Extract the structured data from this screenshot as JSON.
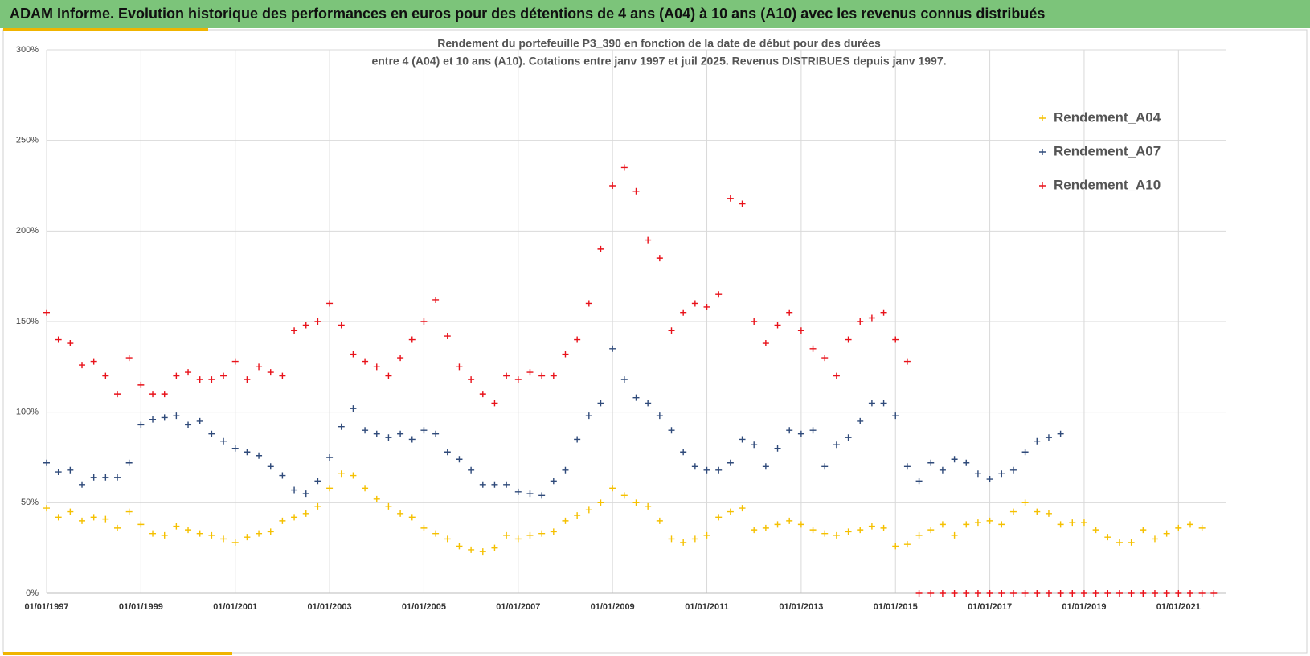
{
  "header": {
    "title": "ADAM Informe. Evolution historique des performances en euros pour des détentions de 4 ans (A04) à 10 ans (A10) avec les revenus connus distribués"
  },
  "chart_data": {
    "type": "scatter",
    "title": "Rendement du portefeuille P3_390 en fonction de la date de début pour des durées",
    "subtitle": "entre 4 (A04) et 10 ans (A10). Cotations entre janv 1997 et juil 2025. Revenus DISTRIBUES depuis janv 1997.",
    "xlim": [
      1997,
      2022
    ],
    "xticks": [
      {
        "value": 1997,
        "label": "01/01/1997"
      },
      {
        "value": 1999,
        "label": "01/01/1999"
      },
      {
        "value": 2001,
        "label": "01/01/2001"
      },
      {
        "value": 2003,
        "label": "01/01/2003"
      },
      {
        "value": 2005,
        "label": "01/01/2005"
      },
      {
        "value": 2007,
        "label": "01/01/2007"
      },
      {
        "value": 2009,
        "label": "01/01/2009"
      },
      {
        "value": 2011,
        "label": "01/01/2011"
      },
      {
        "value": 2013,
        "label": "01/01/2013"
      },
      {
        "value": 2015,
        "label": "01/01/2015"
      },
      {
        "value": 2017,
        "label": "01/01/2017"
      },
      {
        "value": 2019,
        "label": "01/01/2019"
      },
      {
        "value": 2021,
        "label": "01/01/2021"
      }
    ],
    "ylim": [
      0,
      300
    ],
    "yticks": [
      {
        "value": 0,
        "label": "0%"
      },
      {
        "value": 50,
        "label": "50%"
      },
      {
        "value": 100,
        "label": "100%"
      },
      {
        "value": 150,
        "label": "150%"
      },
      {
        "value": 200,
        "label": "200%"
      },
      {
        "value": 250,
        "label": "250%"
      },
      {
        "value": 300,
        "label": "300%"
      }
    ],
    "grid": true,
    "legend": "right",
    "x": [
      1997,
      1997.25,
      1997.5,
      1997.75,
      1998,
      1998.25,
      1998.5,
      1998.75,
      1999,
      1999.25,
      1999.5,
      1999.75,
      2000,
      2000.25,
      2000.5,
      2000.75,
      2001,
      2001.25,
      2001.5,
      2001.75,
      2002,
      2002.25,
      2002.5,
      2002.75,
      2003,
      2003.25,
      2003.5,
      2003.75,
      2004,
      2004.25,
      2004.5,
      2004.75,
      2005,
      2005.25,
      2005.5,
      2005.75,
      2006,
      2006.25,
      2006.5,
      2006.75,
      2007,
      2007.25,
      2007.5,
      2007.75,
      2008,
      2008.25,
      2008.5,
      2008.75,
      2009,
      2009.25,
      2009.5,
      2009.75,
      2010,
      2010.25,
      2010.5,
      2010.75,
      2011,
      2011.25,
      2011.5,
      2011.75,
      2012,
      2012.25,
      2012.5,
      2012.75,
      2013,
      2013.25,
      2013.5,
      2013.75,
      2014,
      2014.25,
      2014.5,
      2014.75,
      2015,
      2015.25,
      2015.5,
      2015.75,
      2016,
      2016.25,
      2016.5,
      2016.75,
      2017,
      2017.25,
      2017.5,
      2017.75,
      2018,
      2018.25,
      2018.5,
      2018.75,
      2019,
      2019.25,
      2019.5,
      2019.75,
      2020,
      2020.25,
      2020.5,
      2020.75,
      2021,
      2021.25,
      2021.5,
      2021.75
    ],
    "series": [
      {
        "name": "Rendement_A04",
        "color": "#f5c000",
        "values": [
          47,
          42,
          45,
          40,
          42,
          41,
          36,
          45,
          38,
          33,
          32,
          37,
          35,
          33,
          32,
          30,
          28,
          31,
          33,
          34,
          40,
          42,
          44,
          48,
          58,
          66,
          65,
          58,
          52,
          48,
          44,
          42,
          36,
          33,
          30,
          26,
          24,
          23,
          25,
          32,
          30,
          32,
          33,
          34,
          40,
          43,
          46,
          50,
          58,
          54,
          50,
          48,
          40,
          30,
          28,
          30,
          32,
          42,
          45,
          47,
          35,
          36,
          38,
          40,
          38,
          35,
          33,
          32,
          34,
          35,
          37,
          36,
          26,
          27,
          32,
          35,
          38,
          32,
          38,
          39,
          40,
          38,
          45,
          50,
          45,
          44,
          38,
          39,
          39,
          35,
          31,
          28,
          28,
          35,
          30,
          33,
          36,
          38,
          36,
          null
        ]
      },
      {
        "name": "Rendement_A07",
        "color": "#2f4a7a",
        "values": [
          72,
          67,
          68,
          60,
          64,
          64,
          64,
          72,
          93,
          96,
          97,
          98,
          93,
          95,
          88,
          84,
          80,
          78,
          76,
          70,
          65,
          57,
          55,
          62,
          75,
          92,
          102,
          90,
          88,
          86,
          88,
          85,
          90,
          88,
          78,
          74,
          68,
          60,
          60,
          60,
          56,
          55,
          54,
          62,
          68,
          85,
          98,
          105,
          135,
          118,
          108,
          105,
          98,
          90,
          78,
          70,
          68,
          68,
          72,
          85,
          82,
          70,
          80,
          90,
          88,
          90,
          70,
          82,
          86,
          95,
          105,
          105,
          98,
          70,
          62,
          72,
          68,
          74,
          72,
          66,
          63,
          66,
          68,
          78,
          84,
          86,
          88,
          null,
          null,
          null,
          null,
          null,
          null,
          null,
          null,
          null,
          null,
          null,
          null,
          null
        ]
      },
      {
        "name": "Rendement_A10",
        "color": "#e8121a",
        "values": [
          155,
          140,
          138,
          126,
          128,
          120,
          110,
          130,
          115,
          110,
          110,
          120,
          122,
          118,
          118,
          120,
          128,
          118,
          125,
          122,
          120,
          145,
          148,
          150,
          160,
          148,
          132,
          128,
          125,
          120,
          130,
          140,
          150,
          162,
          142,
          125,
          118,
          110,
          105,
          120,
          118,
          122,
          120,
          120,
          132,
          140,
          160,
          190,
          225,
          235,
          222,
          195,
          185,
          145,
          155,
          160,
          158,
          165,
          218,
          215,
          150,
          138,
          148,
          155,
          145,
          135,
          130,
          120,
          140,
          150,
          152,
          155,
          140,
          128,
          0,
          0,
          0,
          0,
          0,
          0,
          0,
          0,
          0,
          0,
          0,
          0,
          0,
          0,
          0,
          0,
          0,
          0,
          0,
          0,
          0,
          0,
          0,
          0,
          0,
          0
        ]
      }
    ]
  }
}
